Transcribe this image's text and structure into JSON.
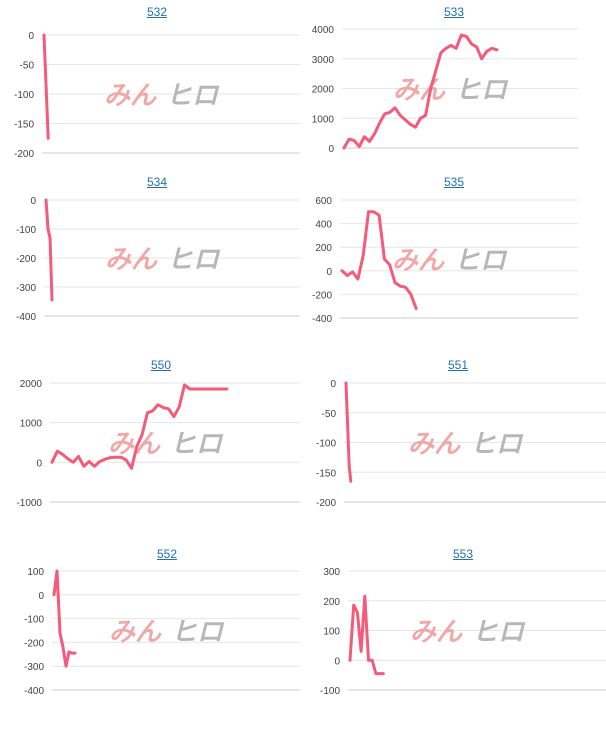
{
  "watermark": {
    "text_left": "みん",
    "text_right": "ヒロ",
    "color_left": "#f2a7a7",
    "color_right": "#b7b7b7"
  },
  "colors": {
    "line": "#f45b7a",
    "grid": "#e6e6e6",
    "axis": "#cccccc",
    "title_link": "#1f6fb2"
  },
  "chart_data": [
    {
      "type": "line",
      "title": "532",
      "ylim": [
        -200,
        0
      ],
      "yticks": [
        0,
        -50,
        -100,
        -150,
        -200
      ],
      "x": [
        0,
        1
      ],
      "values": [
        0,
        -175
      ]
    },
    {
      "type": "line",
      "title": "533",
      "ylim": [
        0,
        4000
      ],
      "yticks": [
        4000,
        3000,
        2000,
        1000,
        0
      ],
      "x": [
        0,
        1,
        2,
        3,
        4,
        5,
        6,
        7,
        8,
        9,
        10,
        11,
        12,
        13,
        14,
        15,
        16,
        17,
        18,
        19,
        20,
        21,
        22,
        23,
        24,
        25,
        26,
        27,
        28,
        29,
        30
      ],
      "values": [
        0,
        300,
        250,
        50,
        380,
        220,
        480,
        850,
        1150,
        1200,
        1350,
        1100,
        950,
        800,
        700,
        1000,
        1100,
        2000,
        2600,
        3200,
        3350,
        3450,
        3350,
        3800,
        3750,
        3500,
        3400,
        3000,
        3250,
        3350,
        3300
      ]
    },
    {
      "type": "line",
      "title": "534",
      "ylim": [
        -400,
        0
      ],
      "yticks": [
        0,
        -100,
        -200,
        -300,
        -400
      ],
      "x": [
        0,
        1,
        2,
        3
      ],
      "values": [
        0,
        -100,
        -130,
        -345
      ]
    },
    {
      "type": "line",
      "title": "535",
      "ylim": [
        -400,
        600
      ],
      "yticks": [
        600,
        400,
        200,
        0,
        -200,
        -400
      ],
      "x": [
        0,
        1,
        2,
        3,
        4,
        5,
        6,
        7,
        8,
        9,
        10,
        11,
        12,
        13,
        14
      ],
      "values": [
        0,
        -40,
        -10,
        -70,
        130,
        500,
        500,
        470,
        100,
        50,
        -100,
        -130,
        -140,
        -200,
        -320
      ]
    },
    {
      "type": "line",
      "title": "550",
      "ylim": [
        -1000,
        2000
      ],
      "yticks": [
        2000,
        1000,
        0,
        -1000
      ],
      "x": [
        0,
        1,
        2,
        3,
        4,
        5,
        6,
        7,
        8,
        9,
        10,
        11,
        12,
        13,
        14,
        15,
        16,
        17,
        18,
        19,
        20,
        21,
        22,
        23,
        24,
        25,
        26,
        27,
        28,
        29,
        30,
        31,
        32,
        33
      ],
      "values": [
        0,
        280,
        200,
        90,
        0,
        150,
        -100,
        20,
        -100,
        20,
        80,
        120,
        130,
        130,
        60,
        -150,
        400,
        700,
        1250,
        1300,
        1450,
        1380,
        1350,
        1150,
        1400,
        1950,
        1850,
        1850,
        1850,
        1850,
        1850,
        1850,
        1850,
        1850
      ]
    },
    {
      "type": "line",
      "title": "551",
      "ylim": [
        -200,
        0
      ],
      "yticks": [
        0,
        -50,
        -100,
        -150,
        -200
      ],
      "x": [
        0,
        1,
        2,
        3
      ],
      "values": [
        0,
        -70,
        -140,
        -165
      ]
    },
    {
      "type": "line",
      "title": "552",
      "ylim": [
        -400,
        100
      ],
      "yticks": [
        100,
        0,
        -100,
        -200,
        -300,
        -400
      ],
      "x": [
        0,
        1,
        2,
        3,
        4,
        5,
        6,
        7
      ],
      "values": [
        0,
        100,
        -160,
        -220,
        -300,
        -240,
        -245,
        -245
      ]
    },
    {
      "type": "line",
      "title": "553",
      "ylim": [
        -100,
        300
      ],
      "yticks": [
        300,
        200,
        100,
        0,
        -100
      ],
      "x": [
        0,
        1,
        2,
        3,
        4,
        5,
        6,
        7,
        8,
        9
      ],
      "values": [
        0,
        185,
        160,
        30,
        215,
        0,
        0,
        -45,
        -45,
        -45
      ]
    }
  ]
}
